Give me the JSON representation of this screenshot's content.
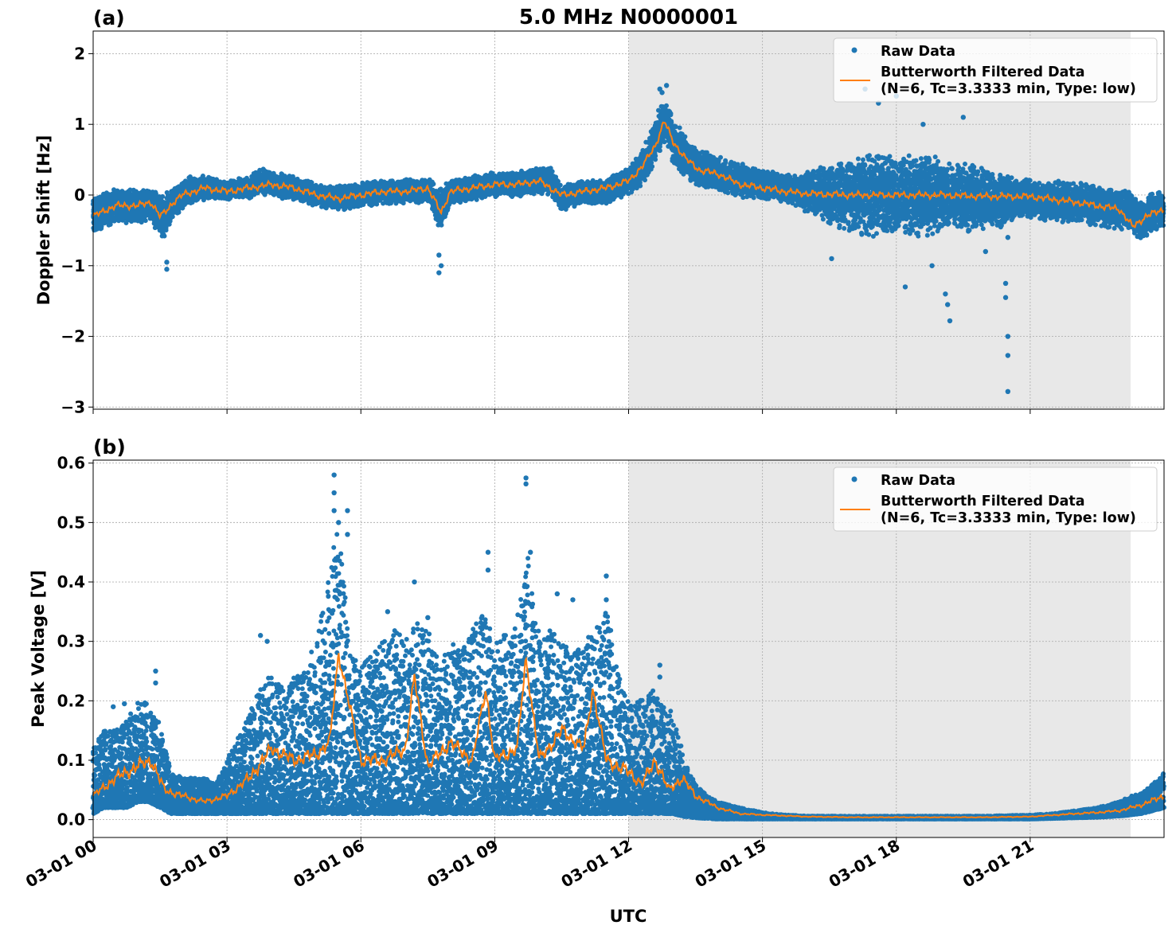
{
  "figure": {
    "title": "5.0 MHz N0000001",
    "xlabel": "UTC",
    "x_tick_labels": [
      "03-01 00",
      "03-01 03",
      "03-01 06",
      "03-01 09",
      "03-01 12",
      "03-01 15",
      "03-01 18",
      "03-01 21"
    ],
    "colors": {
      "raw": "#1f77b4",
      "filtered": "#ff7f0e",
      "shade": "#e8e8e8",
      "grid": "#b0b0b0"
    },
    "legend": {
      "raw_label": "Raw Data",
      "filtered_label_line1": "Butterworth Filtered Data",
      "filtered_label_line2": "(N=6, Tc=3.3333 min, Type: low)",
      "placement": "upper right"
    }
  },
  "chart_data": [
    {
      "panel": "(a)",
      "type": "scatter",
      "ylabel": "Doppler Shift [Hz]",
      "xlim_hours": [
        0,
        24
      ],
      "ylim": [
        -3.03,
        2.32
      ],
      "yticks": [
        -3,
        -2,
        -1,
        0,
        1,
        2
      ],
      "ytick_labels": [
        "−3",
        "−2",
        "−1",
        "0",
        "1",
        "2"
      ],
      "grid": true,
      "shaded_region_hours": [
        12,
        23.25
      ],
      "filtered": {
        "hours": [
          0,
          0.5,
          1,
          1.3,
          1.5,
          1.6,
          1.8,
          2,
          2.5,
          3,
          3.5,
          4,
          4.5,
          5,
          5.5,
          6,
          6.5,
          7,
          7.5,
          7.8,
          8,
          8.5,
          9,
          9.5,
          10,
          10.5,
          11,
          11.5,
          12,
          12.3,
          12.6,
          12.8,
          13,
          13.3,
          13.6,
          14,
          14.5,
          15,
          15.5,
          16,
          17,
          18,
          19,
          20,
          21,
          22,
          22.5,
          23,
          23.3,
          23.6,
          24
        ],
        "values": [
          -0.3,
          -0.15,
          -0.15,
          -0.1,
          -0.3,
          -0.25,
          -0.1,
          0.0,
          0.1,
          0.05,
          0.1,
          0.15,
          0.1,
          0.0,
          -0.05,
          0.0,
          0.05,
          0.05,
          0.1,
          -0.25,
          0.05,
          0.1,
          0.15,
          0.15,
          0.2,
          0.0,
          0.05,
          0.1,
          0.2,
          0.4,
          0.7,
          1.05,
          0.75,
          0.5,
          0.35,
          0.3,
          0.15,
          0.1,
          0.05,
          0.02,
          0.0,
          0.0,
          0.0,
          -0.02,
          -0.02,
          -0.1,
          -0.15,
          -0.2,
          -0.45,
          -0.3,
          -0.2
        ]
      },
      "raw": {
        "hours": [
          0,
          0.25,
          0.5,
          0.75,
          1,
          1.25,
          1.5,
          1.6,
          1.75,
          2,
          2.25,
          2.5,
          2.75,
          3,
          3.25,
          3.5,
          3.75,
          4,
          4.5,
          5,
          5.5,
          6,
          6.5,
          7,
          7.25,
          7.5,
          7.75,
          7.8,
          8,
          8.5,
          9,
          9.5,
          10,
          10.25,
          10.5,
          11,
          11.5,
          12,
          12.25,
          12.5,
          12.75,
          12.85,
          13,
          13.25,
          13.5,
          14,
          14.5,
          15,
          15.5,
          16,
          16.5,
          17,
          17.5,
          18,
          18.25,
          18.5,
          18.75,
          19,
          19.25,
          19.5,
          19.75,
          20,
          20.25,
          20.5,
          20.75,
          21,
          21.25,
          21.5,
          22,
          22.5,
          23,
          23.25,
          23.5,
          23.75,
          24
        ],
        "center": [
          -0.3,
          -0.2,
          -0.15,
          -0.15,
          -0.15,
          -0.15,
          -0.3,
          -0.3,
          -0.15,
          0.0,
          0.1,
          0.1,
          0.1,
          0.05,
          0.1,
          0.1,
          0.2,
          0.15,
          0.1,
          0.0,
          -0.05,
          0.0,
          0.05,
          0.05,
          0.05,
          0.1,
          -0.2,
          -0.2,
          0.05,
          0.1,
          0.15,
          0.15,
          0.2,
          0.2,
          -0.05,
          0.05,
          0.05,
          0.2,
          0.35,
          0.6,
          1.0,
          1.05,
          0.75,
          0.55,
          0.4,
          0.3,
          0.2,
          0.15,
          0.1,
          0.05,
          0.02,
          0.0,
          0.0,
          0.0,
          0.0,
          0.0,
          0.0,
          -0.02,
          -0.02,
          -0.02,
          -0.05,
          -0.05,
          -0.1,
          -0.05,
          -0.05,
          -0.05,
          -0.08,
          -0.1,
          -0.1,
          -0.15,
          -0.2,
          -0.25,
          -0.35,
          -0.25,
          -0.2
        ],
        "half_width": [
          0.3,
          0.25,
          0.25,
          0.25,
          0.25,
          0.25,
          0.35,
          0.35,
          0.25,
          0.2,
          0.2,
          0.18,
          0.15,
          0.15,
          0.15,
          0.15,
          0.2,
          0.18,
          0.18,
          0.18,
          0.18,
          0.18,
          0.18,
          0.18,
          0.18,
          0.18,
          0.3,
          0.3,
          0.18,
          0.18,
          0.18,
          0.18,
          0.2,
          0.22,
          0.2,
          0.18,
          0.18,
          0.2,
          0.25,
          0.3,
          0.35,
          0.35,
          0.35,
          0.3,
          0.3,
          0.25,
          0.25,
          0.22,
          0.2,
          0.3,
          0.45,
          0.55,
          0.6,
          0.6,
          0.6,
          0.6,
          0.6,
          0.55,
          0.5,
          0.5,
          0.5,
          0.45,
          0.4,
          0.35,
          0.3,
          0.3,
          0.3,
          0.3,
          0.3,
          0.3,
          0.3,
          0.3,
          0.3,
          0.3,
          0.25
        ]
      },
      "raw_outliers": {
        "hours": [
          1.65,
          1.65,
          7.75,
          7.75,
          7.8,
          12.7,
          12.75,
          12.85,
          17.3,
          18.0,
          18.2,
          19.1,
          19.15,
          19.2,
          20.45,
          20.45,
          20.5,
          20.5,
          20.5,
          20.5,
          16.55,
          17.6,
          18.6,
          18.8,
          19.5,
          20.0
        ],
        "values": [
          -1.05,
          -0.95,
          -0.85,
          -1.1,
          -1.0,
          1.5,
          1.45,
          1.55,
          1.5,
          1.4,
          -1.3,
          -1.4,
          -1.55,
          -1.78,
          -1.25,
          -1.45,
          -2.0,
          -2.27,
          -2.78,
          -0.6,
          -0.9,
          1.3,
          1.0,
          -1.0,
          1.1,
          -0.8
        ]
      }
    },
    {
      "panel": "(b)",
      "type": "scatter",
      "ylabel": "Peak Voltage [V]",
      "xlim_hours": [
        0,
        24
      ],
      "ylim": [
        -0.03,
        0.605
      ],
      "yticks": [
        0.0,
        0.1,
        0.2,
        0.3,
        0.4,
        0.5,
        0.6
      ],
      "ytick_labels": [
        "0.0",
        "0.1",
        "0.2",
        "0.3",
        "0.4",
        "0.5",
        "0.6"
      ],
      "grid": true,
      "shaded_region_hours": [
        12,
        23.25
      ],
      "filtered": {
        "hours": [
          0,
          0.5,
          1,
          1.3,
          1.6,
          2,
          2.5,
          3,
          3.5,
          4,
          4.5,
          5,
          5.3,
          5.5,
          6,
          6.5,
          7,
          7.2,
          7.5,
          8,
          8.5,
          8.8,
          9,
          9.5,
          9.7,
          10,
          10.5,
          11,
          11.2,
          11.5,
          12,
          12.3,
          12.6,
          12.9,
          13.2,
          13.5,
          14,
          14.5,
          15,
          16,
          17,
          18,
          19,
          20,
          21,
          22,
          22.5,
          23,
          23.5,
          24
        ],
        "values": [
          0.04,
          0.07,
          0.09,
          0.1,
          0.05,
          0.04,
          0.03,
          0.04,
          0.07,
          0.12,
          0.1,
          0.11,
          0.13,
          0.28,
          0.1,
          0.1,
          0.12,
          0.24,
          0.09,
          0.13,
          0.1,
          0.22,
          0.1,
          0.12,
          0.27,
          0.1,
          0.15,
          0.12,
          0.22,
          0.1,
          0.08,
          0.06,
          0.1,
          0.05,
          0.07,
          0.04,
          0.02,
          0.01,
          0.008,
          0.005,
          0.004,
          0.004,
          0.004,
          0.004,
          0.005,
          0.01,
          0.012,
          0.015,
          0.025,
          0.04
        ]
      },
      "raw": {
        "hours": [
          0,
          0.25,
          0.5,
          0.75,
          1,
          1.25,
          1.5,
          1.75,
          2,
          2.25,
          2.5,
          2.75,
          3,
          3.25,
          3.5,
          3.75,
          4,
          4.25,
          4.5,
          4.75,
          5,
          5.25,
          5.5,
          5.75,
          6,
          6.25,
          6.5,
          6.75,
          7,
          7.25,
          7.5,
          7.75,
          8,
          8.25,
          8.5,
          8.75,
          9,
          9.25,
          9.5,
          9.75,
          10,
          10.25,
          10.5,
          10.75,
          11,
          11.25,
          11.5,
          11.75,
          12,
          12.25,
          12.5,
          12.75,
          13,
          13.25,
          13.5,
          13.75,
          14,
          14.5,
          15,
          15.5,
          16,
          17,
          18,
          19,
          20,
          21,
          21.5,
          22,
          22.5,
          23,
          23.25,
          23.5,
          23.75,
          24
        ],
        "low": [
          0.01,
          0.02,
          0.02,
          0.02,
          0.03,
          0.03,
          0.02,
          0.01,
          0.01,
          0.01,
          0.01,
          0.01,
          0.01,
          0.01,
          0.01,
          0.01,
          0.01,
          0.01,
          0.01,
          0.01,
          0.01,
          0.01,
          0.01,
          0.01,
          0.01,
          0.01,
          0.01,
          0.01,
          0.01,
          0.01,
          0.01,
          0.01,
          0.01,
          0.01,
          0.01,
          0.01,
          0.01,
          0.01,
          0.01,
          0.01,
          0.01,
          0.01,
          0.01,
          0.01,
          0.01,
          0.01,
          0.01,
          0.01,
          0.01,
          0.01,
          0.01,
          0.01,
          0.01,
          0.005,
          0.003,
          0.002,
          0.001,
          0.001,
          0.001,
          0.001,
          0.001,
          0.001,
          0.001,
          0.001,
          0.001,
          0.001,
          0.002,
          0.003,
          0.004,
          0.006,
          0.008,
          0.01,
          0.015,
          0.02
        ],
        "high": [
          0.12,
          0.15,
          0.15,
          0.17,
          0.2,
          0.2,
          0.16,
          0.08,
          0.07,
          0.07,
          0.07,
          0.06,
          0.1,
          0.14,
          0.18,
          0.22,
          0.25,
          0.22,
          0.24,
          0.26,
          0.3,
          0.4,
          0.5,
          0.28,
          0.26,
          0.28,
          0.3,
          0.32,
          0.3,
          0.34,
          0.32,
          0.26,
          0.3,
          0.28,
          0.32,
          0.36,
          0.3,
          0.32,
          0.34,
          0.45,
          0.3,
          0.32,
          0.3,
          0.28,
          0.3,
          0.32,
          0.36,
          0.25,
          0.2,
          0.2,
          0.22,
          0.2,
          0.18,
          0.1,
          0.06,
          0.04,
          0.03,
          0.02,
          0.012,
          0.008,
          0.006,
          0.006,
          0.006,
          0.006,
          0.006,
          0.008,
          0.01,
          0.015,
          0.02,
          0.03,
          0.04,
          0.045,
          0.06,
          0.08
        ]
      },
      "raw_outliers": {
        "hours": [
          0.45,
          1.4,
          1.4,
          3.75,
          5.4,
          5.4,
          5.4,
          5.7,
          5.7,
          7.2,
          7.5,
          8.85,
          8.85,
          9.7,
          9.7,
          10.4,
          10.75,
          11.5,
          11.5,
          12.7,
          12.7,
          0.7,
          5.5,
          9.8,
          6.6,
          3.9
        ],
        "values": [
          0.19,
          0.25,
          0.23,
          0.31,
          0.58,
          0.55,
          0.52,
          0.52,
          0.48,
          0.4,
          0.34,
          0.45,
          0.42,
          0.575,
          0.565,
          0.38,
          0.37,
          0.41,
          0.37,
          0.26,
          0.24,
          0.195,
          0.5,
          0.45,
          0.35,
          0.3
        ]
      }
    }
  ]
}
